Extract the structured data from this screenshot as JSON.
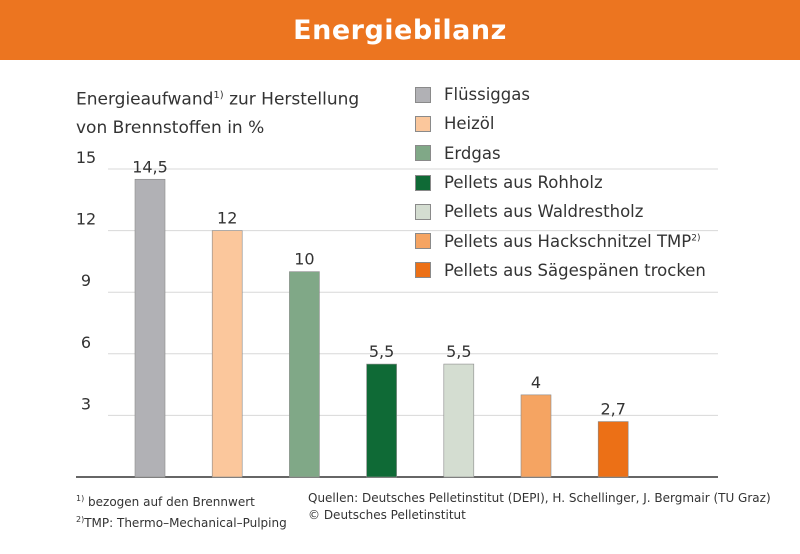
{
  "header": {
    "title": "Energiebilanz"
  },
  "y_title": {
    "line1": "Energieaufwand",
    "sup": "1)",
    "line1_rest": " zur Herstellung",
    "line2": "von Brennstoffen in %"
  },
  "chart_data": {
    "type": "bar",
    "categories": [
      "Flüssiggas",
      "Heizöl",
      "Erdgas",
      "Pellets aus Rohholz",
      "Pellets aus Waldrestholz",
      "Pellets aus Hackschnitzel TMP²⁾",
      "Pellets aus Sägespänen trocken"
    ],
    "values": [
      14.5,
      12,
      10,
      5.5,
      5.5,
      4,
      2.7
    ],
    "value_labels": [
      "14,5",
      "12",
      "10",
      "5,5",
      "5,5",
      "4",
      "2,7"
    ],
    "colors": [
      "#b1b1b5",
      "#fbc79c",
      "#80a887",
      "#0f6a36",
      "#d4ddd1",
      "#f5a462",
      "#ec7016"
    ],
    "ylim": [
      0,
      15
    ],
    "yticks": [
      15,
      12,
      9,
      6,
      3
    ],
    "ytick_labels": [
      "15",
      "12",
      "9",
      "6",
      "3"
    ],
    "grid": true,
    "legend_position": "top-right"
  },
  "legend": {
    "items": [
      "Flüssiggas",
      "Heizöl",
      "Erdgas",
      "Pellets aus Rohholz",
      "Pellets aus Waldrestholz",
      "Pellets aus Hackschnitzel TMP",
      "Pellets aus Sägespänen trocken"
    ],
    "tmp_sup": "2)"
  },
  "footnotes": {
    "f1_mark": "1)",
    "f1_text": " bezogen auf den Brennwert",
    "f2_mark": "2)",
    "f2_text": "TMP: Thermo–Mechanical–Pulping"
  },
  "sources": {
    "line1": "Quellen: Deutsches Pelletinstitut (DEPI), H. Schellinger, J. Bergmair (TU Graz)",
    "line2": "© Deutsches Pelletinstitut"
  },
  "colors": {
    "header": "#ec7520",
    "grid": "#d8d8d8",
    "axis": "#333333"
  }
}
